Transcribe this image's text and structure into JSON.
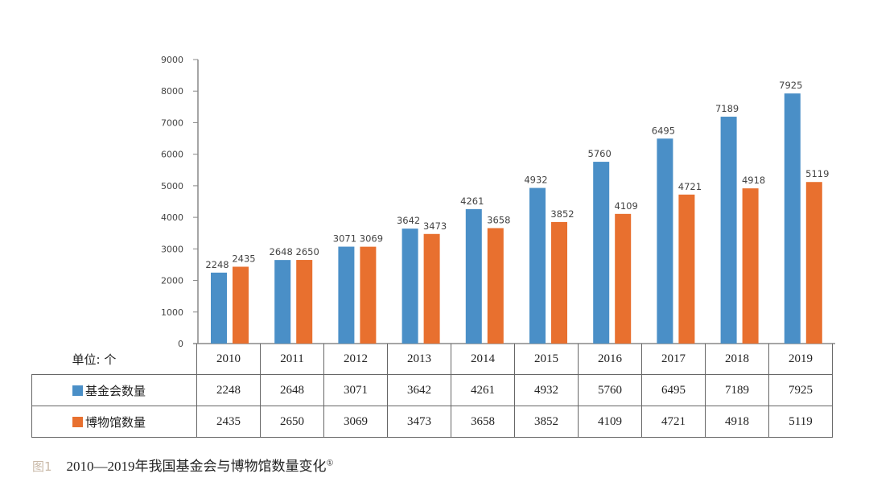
{
  "chart_data": {
    "type": "bar",
    "categories": [
      "2010",
      "2011",
      "2012",
      "2013",
      "2014",
      "2015",
      "2016",
      "2017",
      "2018",
      "2019"
    ],
    "series": [
      {
        "name": "基金会数量",
        "color": "#4a8fc7",
        "values": [
          2248,
          2648,
          3071,
          3642,
          4261,
          4932,
          5760,
          6495,
          7189,
          7925
        ]
      },
      {
        "name": "博物馆数量",
        "color": "#e8702f",
        "values": [
          2435,
          2650,
          3069,
          3473,
          3658,
          3852,
          4109,
          4721,
          4918,
          5119
        ]
      }
    ],
    "ylim": [
      0,
      9000
    ],
    "yticks": [
      "0",
      "1000",
      "2000",
      "3000",
      "4000",
      "5000",
      "6000",
      "7000",
      "8000",
      "9000"
    ],
    "unit_label": "单位: 个",
    "grid": false,
    "legend": "data table below chart",
    "title": ""
  },
  "caption": {
    "figure": "图1",
    "text": "2010—2019年我国基金会与博物馆数量变化",
    "note_mark": "①"
  }
}
